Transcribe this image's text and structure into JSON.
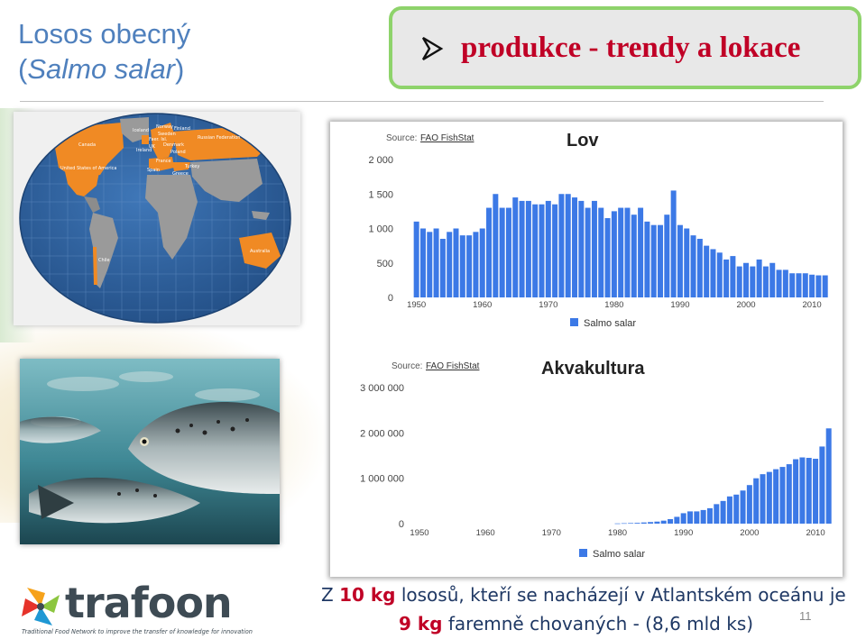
{
  "slide": {
    "title_line1": "Losos obecný",
    "title_line2_open": "(",
    "title_line2_italic": "Salmo salar",
    "title_line2_close": ")",
    "header_text": "produkce  - trendy a lokace",
    "page_number": "11",
    "bottom_line1": {
      "pre": "Z ",
      "highlight": "10 kg",
      "post": " lososů, kteří se nacházejí v Atlantském oceánu je"
    },
    "bottom_line2": {
      "highlight": "9 kg",
      "post": " faremně chovaných  -  (8,6 mld ks)"
    },
    "logo": {
      "name": "trafoon",
      "tagline": "Traditional Food Network to improve the transfer of knowledge for innovation"
    },
    "map_labels": [
      "Canada",
      "United States of America",
      "Chile",
      "Norway",
      "Sweden",
      "Finland",
      "Iceland",
      "Faer. Isl.",
      "UK",
      "Ireland",
      "Denmark",
      "Poland",
      "France",
      "Spain",
      "Turkey",
      "Greece",
      "Russian Federation",
      "Australia"
    ],
    "colors": {
      "title_blue": "#4f80bd",
      "header_red": "#c00026",
      "header_border": "#8ed36b",
      "bar_blue": "#3c79e6",
      "text_navy": "#1f3864",
      "map_orange": "#f08a24"
    }
  },
  "chart_data": [
    {
      "type": "bar",
      "title": "Lov",
      "source_label": "Source:",
      "source_name": "FAO FishStat",
      "legend": "Salmo salar",
      "legend_position": "bottom",
      "ylim": [
        0,
        2200
      ],
      "yticks": [
        0,
        500,
        1000,
        1500,
        2000
      ],
      "ytick_labels": [
        "0",
        "500",
        "1 000",
        "1 500",
        "2 000"
      ],
      "xticks": [
        1950,
        1960,
        1970,
        1980,
        1990,
        2000,
        2010
      ],
      "xtick_labels": [
        "1950",
        "1960",
        "1970",
        "1980",
        "1990",
        "2000",
        "2010"
      ],
      "x": [
        1950,
        1951,
        1952,
        1953,
        1954,
        1955,
        1956,
        1957,
        1958,
        1959,
        1960,
        1961,
        1962,
        1963,
        1964,
        1965,
        1966,
        1967,
        1968,
        1969,
        1970,
        1971,
        1972,
        1973,
        1974,
        1975,
        1976,
        1977,
        1978,
        1979,
        1980,
        1981,
        1982,
        1983,
        1984,
        1985,
        1986,
        1987,
        1988,
        1989,
        1990,
        1991,
        1992,
        1993,
        1994,
        1995,
        1996,
        1997,
        1998,
        1999,
        2000,
        2001,
        2002,
        2003,
        2004,
        2005,
        2006,
        2007,
        2008,
        2009,
        2010,
        2011,
        2012
      ],
      "values": [
        1100,
        1000,
        950,
        1000,
        850,
        950,
        1000,
        900,
        900,
        950,
        1000,
        1300,
        1500,
        1300,
        1300,
        1450,
        1400,
        1400,
        1350,
        1350,
        1400,
        1350,
        1500,
        1500,
        1450,
        1400,
        1300,
        1400,
        1300,
        1150,
        1250,
        1300,
        1300,
        1200,
        1300,
        1100,
        1050,
        1050,
        1200,
        1550,
        1050,
        1000,
        900,
        850,
        750,
        700,
        650,
        550,
        600,
        450,
        500,
        450,
        550,
        450,
        500,
        400,
        400,
        350,
        350,
        350,
        330,
        320,
        320
      ]
    },
    {
      "type": "bar",
      "title": "Akvakultura",
      "source_label": "Source:",
      "source_name": "FAO FishStat",
      "legend": "Salmo salar",
      "legend_position": "bottom",
      "ylim": [
        0,
        3300000
      ],
      "yticks": [
        0,
        1000000,
        2000000,
        3000000
      ],
      "ytick_labels": [
        "0",
        "1 000 000",
        "2 000 000",
        "3 000 000"
      ],
      "xticks": [
        1950,
        1960,
        1970,
        1980,
        1990,
        2000,
        2010
      ],
      "xtick_labels": [
        "1950",
        "1960",
        "1970",
        "1980",
        "1990",
        "2000",
        "2010"
      ],
      "x": [
        1980,
        1981,
        1982,
        1983,
        1984,
        1985,
        1986,
        1987,
        1988,
        1989,
        1990,
        1991,
        1992,
        1993,
        1994,
        1995,
        1996,
        1997,
        1998,
        1999,
        2000,
        2001,
        2002,
        2003,
        2004,
        2005,
        2006,
        2007,
        2008,
        2009,
        2010,
        2011,
        2012
      ],
      "values": [
        5000,
        9000,
        13000,
        17000,
        26000,
        35000,
        45000,
        66000,
        100000,
        150000,
        230000,
        270000,
        270000,
        300000,
        340000,
        430000,
        500000,
        600000,
        640000,
        730000,
        850000,
        1000000,
        1090000,
        1140000,
        1200000,
        1250000,
        1310000,
        1420000,
        1460000,
        1450000,
        1430000,
        1700000,
        2100000
      ]
    }
  ]
}
